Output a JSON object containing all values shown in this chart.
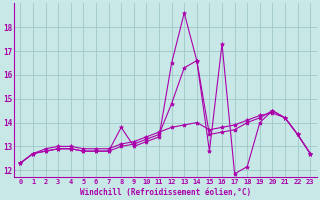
{
  "xlabel": "Windchill (Refroidissement éolien,°C)",
  "xlim": [
    -0.5,
    23.5
  ],
  "ylim": [
    11.7,
    19.0
  ],
  "yticks": [
    12,
    13,
    14,
    15,
    16,
    17,
    18
  ],
  "xticks": [
    0,
    1,
    2,
    3,
    4,
    5,
    6,
    7,
    8,
    9,
    10,
    11,
    12,
    13,
    14,
    15,
    16,
    17,
    18,
    19,
    20,
    21,
    22,
    23
  ],
  "background_color": "#c8e8e8",
  "line_color": "#aa00aa",
  "grid_color": "#a0c8c8",
  "series": [
    [
      12.3,
      12.7,
      12.8,
      12.9,
      12.9,
      12.8,
      12.8,
      12.8,
      13.8,
      13.0,
      13.2,
      13.4,
      16.5,
      18.6,
      16.6,
      12.8,
      17.3,
      11.85,
      12.15,
      14.0,
      14.5,
      14.2,
      13.5,
      12.7
    ],
    [
      12.3,
      12.7,
      12.8,
      12.9,
      12.9,
      12.8,
      12.8,
      12.8,
      13.0,
      13.1,
      13.3,
      13.5,
      14.8,
      16.3,
      16.6,
      13.5,
      13.6,
      13.7,
      14.0,
      14.2,
      14.5,
      14.2,
      13.5,
      12.7
    ],
    [
      12.3,
      12.7,
      12.9,
      13.0,
      13.0,
      12.9,
      12.9,
      12.9,
      13.1,
      13.2,
      13.4,
      13.6,
      13.8,
      13.9,
      14.0,
      13.7,
      13.8,
      13.9,
      14.1,
      14.3,
      14.4,
      14.2,
      13.5,
      12.7
    ]
  ]
}
